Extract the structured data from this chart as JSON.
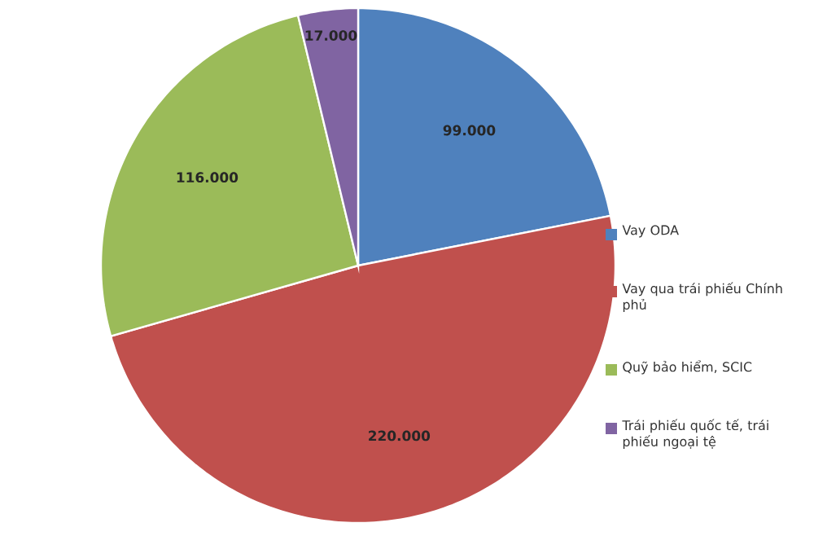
{
  "chart_data": {
    "type": "pie",
    "categories": [
      "Vay ODA",
      "Vay qua trái phiếu Chính phủ",
      "Quỹ bảo hiểm, SCIC",
      "Trái phiếu quốc tế, trái phiếu ngoại tệ"
    ],
    "values": [
      99000,
      220000,
      116000,
      17000
    ],
    "value_labels": [
      "99.000",
      "220.000",
      "116.000",
      "17.000"
    ],
    "colors": [
      "#4f81bd",
      "#c0504d",
      "#9bbb59",
      "#8064a2"
    ],
    "legend": "right"
  }
}
